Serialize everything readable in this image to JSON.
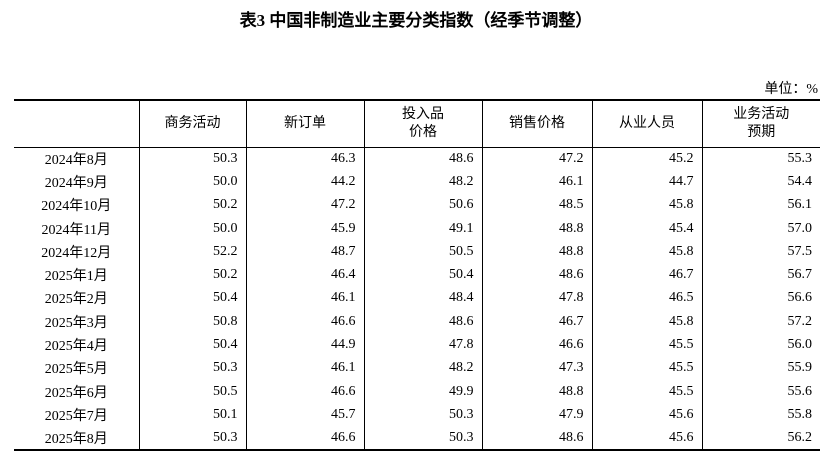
{
  "title": "表3 中国非制造业主要分类指数（经季节调整）",
  "unit": "单位：%",
  "headers": [
    "",
    "商务活动",
    "新订单",
    "投入品\n价格",
    "销售价格",
    "从业人员",
    "业务活动\n预期"
  ],
  "rows": [
    [
      "2024年8月",
      "50.3",
      "46.3",
      "48.6",
      "47.2",
      "45.2",
      "55.3"
    ],
    [
      "2024年9月",
      "50.0",
      "44.2",
      "48.2",
      "46.1",
      "44.7",
      "54.4"
    ],
    [
      "2024年10月",
      "50.2",
      "47.2",
      "50.6",
      "48.5",
      "45.8",
      "56.1"
    ],
    [
      "2024年11月",
      "50.0",
      "45.9",
      "49.1",
      "48.8",
      "45.4",
      "57.0"
    ],
    [
      "2024年12月",
      "52.2",
      "48.7",
      "50.5",
      "48.8",
      "45.8",
      "57.5"
    ],
    [
      "2025年1月",
      "50.2",
      "46.4",
      "50.4",
      "48.6",
      "46.7",
      "56.7"
    ],
    [
      "2025年2月",
      "50.4",
      "46.1",
      "48.4",
      "47.8",
      "46.5",
      "56.6"
    ],
    [
      "2025年3月",
      "50.8",
      "46.6",
      "48.6",
      "46.7",
      "45.8",
      "57.2"
    ],
    [
      "2025年4月",
      "50.4",
      "44.9",
      "47.8",
      "46.6",
      "45.5",
      "56.0"
    ],
    [
      "2025年5月",
      "50.3",
      "46.1",
      "48.2",
      "47.3",
      "45.5",
      "55.9"
    ],
    [
      "2025年6月",
      "50.5",
      "46.6",
      "49.9",
      "48.8",
      "45.5",
      "55.6"
    ],
    [
      "2025年7月",
      "50.1",
      "45.7",
      "50.3",
      "47.9",
      "45.6",
      "55.8"
    ],
    [
      "2025年8月",
      "50.3",
      "46.6",
      "50.3",
      "48.6",
      "45.6",
      "56.2"
    ]
  ]
}
